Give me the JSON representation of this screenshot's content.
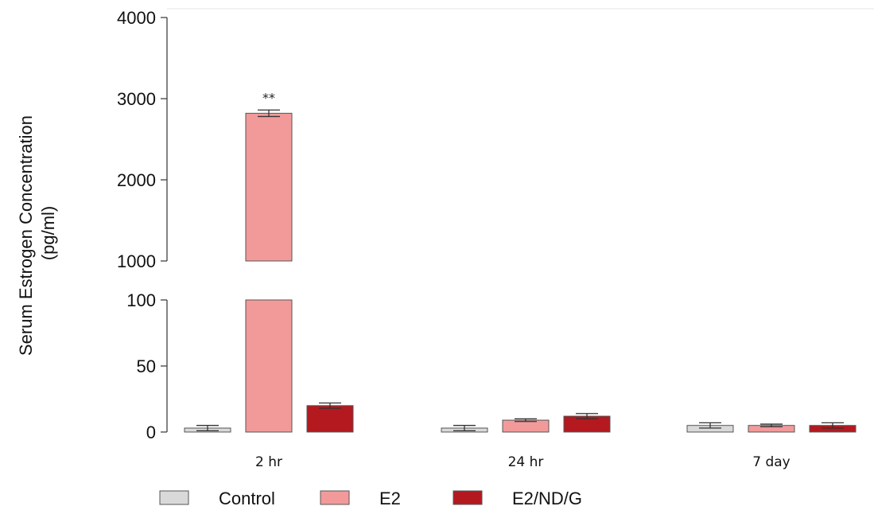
{
  "chart_data": {
    "type": "bar",
    "ylabel_line1": "Serum Estrogen Concentration",
    "ylabel_line2": "(pg/ml)",
    "xlabel": "",
    "categories": [
      "2 hr",
      "24 hr",
      "7 day"
    ],
    "series": [
      {
        "name": "Control",
        "color": "#d9d9d9",
        "values": [
          3,
          3,
          5
        ],
        "errors": [
          2,
          2,
          2
        ]
      },
      {
        "name": "E2",
        "color": "#f29a9a",
        "values": [
          2820,
          9,
          5
        ],
        "errors": [
          40,
          1,
          1
        ]
      },
      {
        "name": "E2/ND/G",
        "color": "#b3191f",
        "values": [
          20,
          12,
          5
        ],
        "errors": [
          2,
          2,
          2
        ]
      }
    ],
    "axis_break": {
      "lower_range": [
        0,
        100
      ],
      "upper_range": [
        1000,
        4000
      ]
    },
    "lower_ticks": [
      "0",
      "50",
      "100"
    ],
    "upper_ticks": [
      "1000",
      "2000",
      "3000",
      "4000"
    ],
    "annotations": [
      {
        "category": "2 hr",
        "series": "E2",
        "text": "**"
      }
    ],
    "legend_position": "bottom",
    "grid": false
  }
}
